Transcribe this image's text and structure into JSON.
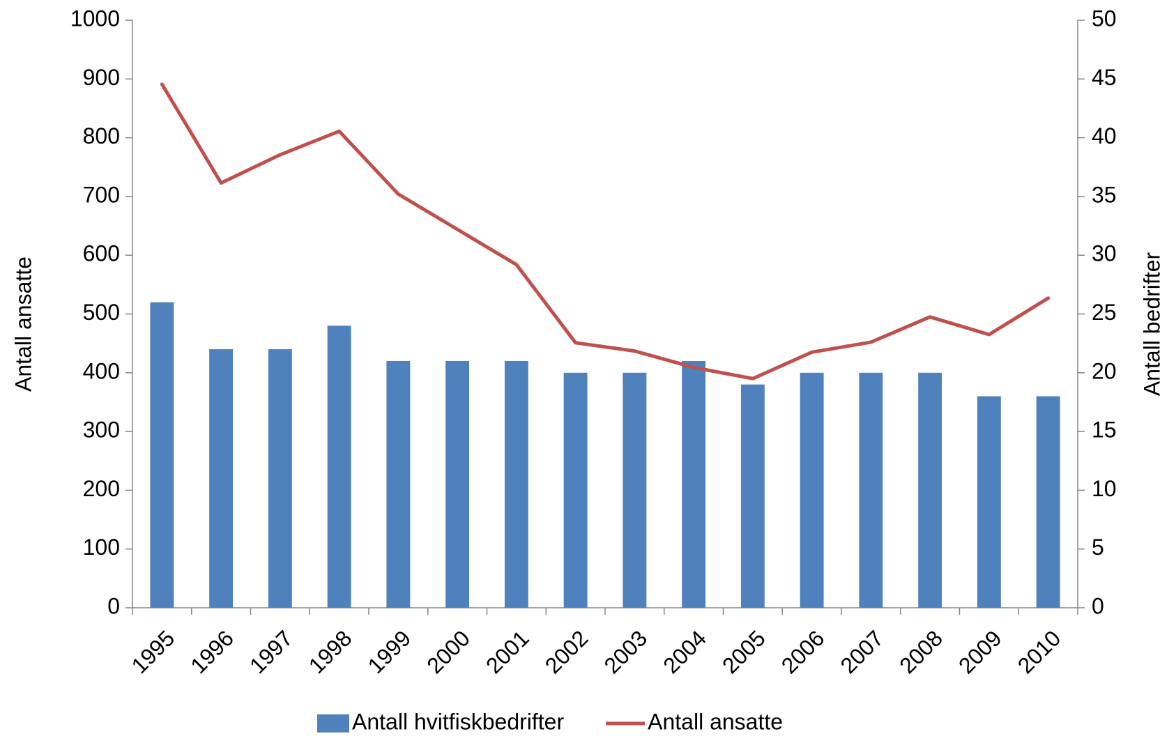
{
  "chart_data": {
    "type": "bar_line",
    "categories": [
      "1995",
      "1996",
      "1997",
      "1998",
      "1999",
      "2000",
      "2001",
      "2002",
      "2003",
      "2004",
      "2005",
      "2006",
      "2007",
      "2008",
      "2009",
      "2010"
    ],
    "series": [
      {
        "name": "Antall hvitfiskbedrifter",
        "type": "bar",
        "axis": "y2",
        "color": "#4f81bd",
        "values": [
          26,
          22,
          22,
          24,
          21,
          21,
          21,
          20,
          20,
          21,
          19,
          20,
          20,
          20,
          18,
          18
        ]
      },
      {
        "name": "Antall ansatte",
        "type": "line",
        "axis": "y",
        "color": "#c0504d",
        "values": [
          891,
          723,
          771,
          811,
          704,
          644,
          584,
          451,
          437,
          409,
          390,
          435,
          452,
          495,
          465,
          527
        ]
      }
    ],
    "ylabel": "Antall ansatte",
    "y2label": "Antall bedrifter",
    "ylim": [
      0,
      1000
    ],
    "yticks": [
      0,
      100,
      200,
      300,
      400,
      500,
      600,
      700,
      800,
      900,
      1000
    ],
    "y2lim": [
      0,
      50
    ],
    "y2ticks": [
      0,
      5,
      10,
      15,
      20,
      25,
      30,
      35,
      40,
      45,
      50
    ],
    "legend": "bottom"
  }
}
